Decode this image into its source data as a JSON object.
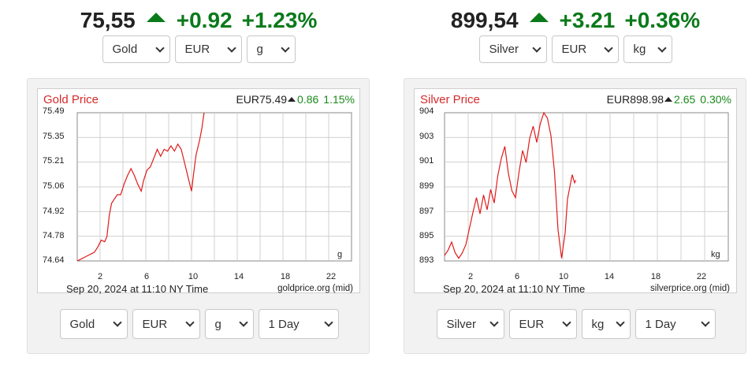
{
  "gold": {
    "ticker": {
      "price": "75,55",
      "change": "+0.92",
      "percent": "+1.23%"
    },
    "selectors": {
      "metal": "Gold",
      "currency": "EUR",
      "unit": "g",
      "range": "1 Day"
    },
    "chart": {
      "title": "Gold Price",
      "info_price": "EUR75.49",
      "info_change": "0.86",
      "info_percent": "1.15%",
      "y_ticks": [
        "75.49",
        "75.35",
        "75.21",
        "75.06",
        "74.92",
        "74.78",
        "74.64"
      ],
      "x_ticks": [
        "2",
        "6",
        "10",
        "14",
        "18",
        "22"
      ],
      "unit_label": "g",
      "date_label": "Sep 20, 2024 at 11:10 NY Time",
      "source": "goldprice.org (mid)"
    }
  },
  "silver": {
    "ticker": {
      "price": "899,54",
      "change": "+3.21",
      "percent": "+0.36%"
    },
    "selectors": {
      "metal": "Silver",
      "currency": "EUR",
      "unit": "kg",
      "range": "1 Day"
    },
    "chart": {
      "title": "Silver Price",
      "info_price": "EUR898.98",
      "info_change": "2.65",
      "info_percent": "0.30%",
      "y_ticks": [
        "904",
        "903",
        "901",
        "899",
        "897",
        "895",
        "893"
      ],
      "x_ticks": [
        "2",
        "6",
        "10",
        "14",
        "18",
        "22"
      ],
      "unit_label": "kg",
      "date_label": "Sep 20, 2024 at 11:10 NY Time",
      "source": "silverprice.org (mid)"
    }
  },
  "chart_data": [
    {
      "type": "line",
      "title": "Gold Price",
      "xlim": [
        0,
        24
      ],
      "ylim": [
        74.64,
        75.49
      ],
      "series": [
        {
          "values": [
            [
              0,
              74.64
            ],
            [
              0.3,
              74.65
            ],
            [
              0.6,
              74.66
            ],
            [
              0.9,
              74.67
            ],
            [
              1.2,
              74.68
            ],
            [
              1.5,
              74.69
            ],
            [
              1.8,
              74.72
            ],
            [
              2.1,
              74.76
            ],
            [
              2.4,
              74.75
            ],
            [
              2.6,
              74.78
            ],
            [
              2.8,
              74.9
            ],
            [
              3.0,
              74.97
            ],
            [
              3.2,
              74.99
            ],
            [
              3.5,
              75.02
            ],
            [
              3.8,
              75.02
            ],
            [
              4.1,
              75.08
            ],
            [
              4.4,
              75.13
            ],
            [
              4.7,
              75.17
            ],
            [
              5.0,
              75.13
            ],
            [
              5.3,
              75.08
            ],
            [
              5.6,
              75.04
            ],
            [
              5.8,
              75.1
            ],
            [
              6.1,
              75.16
            ],
            [
              6.4,
              75.18
            ],
            [
              6.7,
              75.23
            ],
            [
              7.0,
              75.28
            ],
            [
              7.3,
              75.24
            ],
            [
              7.6,
              75.28
            ],
            [
              7.9,
              75.27
            ],
            [
              8.2,
              75.3
            ],
            [
              8.5,
              75.27
            ],
            [
              8.8,
              75.31
            ],
            [
              9.1,
              75.28
            ],
            [
              9.4,
              75.2
            ],
            [
              9.7,
              75.12
            ],
            [
              10.0,
              75.04
            ],
            [
              10.2,
              75.15
            ],
            [
              10.4,
              75.25
            ],
            [
              10.7,
              75.33
            ],
            [
              10.9,
              75.4
            ],
            [
              11.1,
              75.49
            ]
          ]
        }
      ]
    },
    {
      "type": "line",
      "title": "Silver Price",
      "xlim": [
        0,
        24
      ],
      "ylim": [
        893,
        904
      ],
      "series": [
        {
          "values": [
            [
              0,
              893.4
            ],
            [
              0.3,
              893.8
            ],
            [
              0.6,
              894.4
            ],
            [
              0.9,
              893.6
            ],
            [
              1.2,
              893.2
            ],
            [
              1.5,
              893.6
            ],
            [
              1.8,
              894.2
            ],
            [
              2.1,
              895.4
            ],
            [
              2.4,
              896.6
            ],
            [
              2.7,
              897.7
            ],
            [
              3.0,
              896.5
            ],
            [
              3.3,
              897.9
            ],
            [
              3.6,
              896.8
            ],
            [
              3.9,
              898.3
            ],
            [
              4.2,
              897.3
            ],
            [
              4.5,
              899.3
            ],
            [
              4.8,
              900.6
            ],
            [
              5.1,
              901.5
            ],
            [
              5.4,
              899.5
            ],
            [
              5.7,
              898.2
            ],
            [
              6.0,
              897.7
            ],
            [
              6.3,
              899.6
            ],
            [
              6.6,
              901.2
            ],
            [
              6.9,
              900.3
            ],
            [
              7.2,
              902.1
            ],
            [
              7.5,
              903.0
            ],
            [
              7.8,
              901.8
            ],
            [
              8.1,
              903.2
            ],
            [
              8.4,
              904.0
            ],
            [
              8.7,
              903.6
            ],
            [
              9.0,
              902.3
            ],
            [
              9.3,
              899.6
            ],
            [
              9.6,
              895.3
            ],
            [
              9.9,
              893.2
            ],
            [
              10.2,
              895.1
            ],
            [
              10.4,
              897.6
            ],
            [
              10.6,
              898.5
            ],
            [
              10.8,
              899.4
            ],
            [
              11.0,
              898.8
            ],
            [
              11.1,
              899.0
            ]
          ]
        }
      ]
    }
  ]
}
